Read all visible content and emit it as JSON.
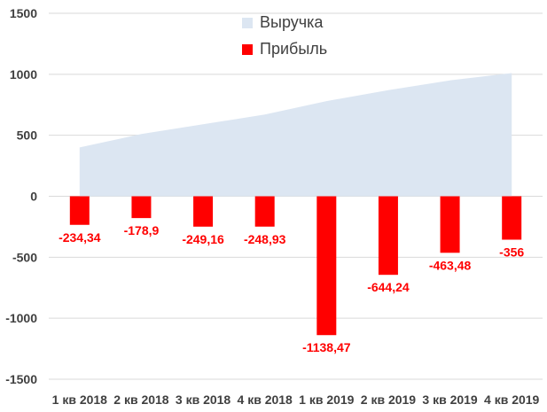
{
  "chart_data": {
    "type": "bar",
    "categories": [
      "1 кв 2018",
      "2 кв 2018",
      "3 кв 2018",
      "4 кв 2018",
      "1 кв 2019",
      "2 кв 2019",
      "3 кв 2019",
      "4 кв 2019"
    ],
    "series": [
      {
        "name": "Выручка",
        "type": "area",
        "color": "#dce6f2",
        "values": [
          400,
          510,
          590,
          670,
          780,
          870,
          950,
          1010
        ]
      },
      {
        "name": "Прибыль",
        "type": "bar",
        "color": "#ff0000",
        "values": [
          -234.34,
          -178.9,
          -249.16,
          -248.93,
          -1138.47,
          -644.24,
          -463.48,
          -356
        ],
        "labels": [
          "-234,34",
          "-178,9",
          "-249,16",
          "-248,93",
          "-1138,47",
          "-644,24",
          "-463,48",
          "-356"
        ]
      }
    ],
    "yticks": [
      "1500",
      "1000",
      "500",
      "0",
      "-500",
      "-1000",
      "-1500"
    ],
    "ylim": [
      -1500,
      1500
    ],
    "grid": true,
    "legend_position": "top-center",
    "label_color": "#ff0000"
  }
}
